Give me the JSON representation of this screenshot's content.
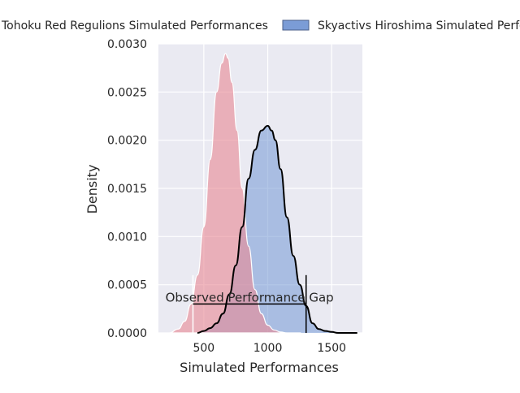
{
  "chart_data": {
    "type": "area",
    "title": "",
    "xlabel": "Simulated Performances",
    "ylabel": "Density",
    "xlim": [
      145,
      1740
    ],
    "ylim": [
      0,
      0.003
    ],
    "xticks": [
      "500",
      "1000",
      "1500"
    ],
    "xtick_values": [
      500,
      1000,
      1500
    ],
    "yticks": [
      "0.0000",
      "0.0005",
      "0.0010",
      "0.0015",
      "0.0020",
      "0.0025",
      "0.0030"
    ],
    "ytick_values": [
      0,
      0.0005,
      0.001,
      0.0015,
      0.002,
      0.0025,
      0.003
    ],
    "grid": true,
    "legend_placement": "top, outside plot area",
    "legend": [
      "Tohoku Red Regulions Simulated Performances",
      "Skyactivs Hiroshima Simulated Performances"
    ],
    "series": [
      {
        "name": "Tohoku Red Regulions Simulated Performances",
        "color": "#e88a96",
        "x": [
          230,
          300,
          350,
          400,
          450,
          500,
          550,
          600,
          640,
          670,
          690,
          720,
          760,
          800,
          850,
          900,
          950,
          1000,
          1050,
          1100,
          1150,
          1200,
          1260
        ],
        "values": [
          0.0,
          4e-05,
          0.00012,
          0.0003,
          0.0006,
          0.0011,
          0.0018,
          0.0025,
          0.0028,
          0.0029,
          0.00285,
          0.0026,
          0.0021,
          0.0015,
          0.0009,
          0.00045,
          0.0002,
          8e-05,
          3e-05,
          1e-05,
          0.0,
          0.0,
          0.0
        ]
      },
      {
        "name": "Skyactivs Hiroshima Simulated Performances",
        "color": "#7b9cd6",
        "x": [
          450,
          500,
          550,
          600,
          650,
          700,
          750,
          800,
          850,
          900,
          950,
          1000,
          1030,
          1060,
          1100,
          1150,
          1200,
          1250,
          1300,
          1350,
          1400,
          1450,
          1500,
          1550,
          1600,
          1650,
          1700
        ],
        "values": [
          0.0,
          2e-05,
          5e-05,
          0.0001,
          0.0002,
          0.0004,
          0.0007,
          0.0011,
          0.0016,
          0.0019,
          0.0021,
          0.00215,
          0.0021,
          0.002,
          0.0017,
          0.0012,
          0.0008,
          0.0005,
          0.00028,
          0.0001,
          4e-05,
          2e-05,
          1e-05,
          0.0,
          0.0,
          0.0,
          0.0
        ]
      }
    ],
    "annotations": [
      {
        "text": "Observed Performance Gap",
        "x_start": 415,
        "x_end": 1300,
        "y": 0.0003,
        "left_marker_top": 0.0006,
        "right_marker_top": 0.0006
      }
    ]
  }
}
